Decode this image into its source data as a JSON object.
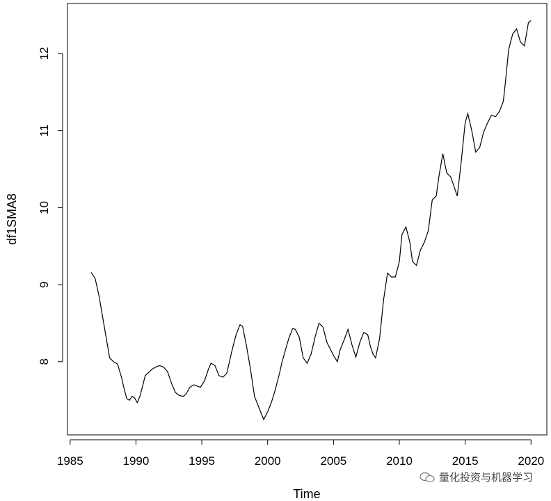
{
  "watermark": {
    "text": "量化投资与机器学习",
    "icon": "wechat-icon"
  },
  "chart_data": {
    "type": "line",
    "title": "",
    "xlabel": "Time",
    "ylabel": "df1SMA8",
    "xlim": [
      1984.8,
      2021.2
    ],
    "ylim": [
      7.05,
      12.65
    ],
    "xticks": [
      1985,
      1990,
      1995,
      2000,
      2005,
      2010,
      2015,
      2020
    ],
    "yticks": [
      8,
      9,
      10,
      11,
      12
    ],
    "grid": false,
    "color": "#000000",
    "series": [
      {
        "x": [
          1986.6,
          1986.9,
          1987.2,
          1987.5,
          1987.8,
          1988.0,
          1988.3,
          1988.6,
          1988.9,
          1989.1,
          1989.3,
          1989.5,
          1989.7,
          1989.9,
          1990.1,
          1990.3,
          1990.5,
          1990.7,
          1990.9,
          1991.2,
          1991.5,
          1991.8,
          1992.1,
          1992.4,
          1992.7,
          1993.0,
          1993.3,
          1993.6,
          1993.8,
          1994.1,
          1994.4,
          1994.7,
          1994.9,
          1995.2,
          1995.5,
          1995.7,
          1996.0,
          1996.3,
          1996.6,
          1996.9,
          1997.1,
          1997.3,
          1997.6,
          1997.9,
          1998.1,
          1998.4,
          1998.7,
          1999.0,
          1999.3,
          1999.7,
          2000.0,
          2000.3,
          2000.6,
          2000.9,
          2001.1,
          2001.3,
          2001.6,
          2001.9,
          2002.1,
          2002.4,
          2002.7,
          2003.0,
          2003.3,
          2003.6,
          2003.9,
          2004.2,
          2004.5,
          2004.8,
          2005.0,
          2005.3,
          2005.5,
          2005.8,
          2006.1,
          2006.4,
          2006.7,
          2007.0,
          2007.3,
          2007.6,
          2007.8,
          2008.0,
          2008.2,
          2008.5,
          2008.8,
          2009.1,
          2009.4,
          2009.7,
          2010.0,
          2010.2,
          2010.5,
          2010.8,
          2011.0,
          2011.3,
          2011.6,
          2011.9,
          2012.2,
          2012.5,
          2012.8,
          2013.0,
          2013.3,
          2013.6,
          2013.9,
          2014.2,
          2014.4,
          2014.7,
          2015.0,
          2015.2,
          2015.5,
          2015.8,
          2016.1,
          2016.4,
          2016.7,
          2017.0,
          2017.3,
          2017.6,
          2017.9,
          2018.1,
          2018.3,
          2018.6,
          2018.9,
          2019.2,
          2019.5,
          2019.8,
          2020.0
        ],
        "y": [
          9.16,
          9.08,
          8.85,
          8.55,
          8.25,
          8.05,
          8.0,
          7.97,
          7.8,
          7.65,
          7.52,
          7.5,
          7.55,
          7.53,
          7.47,
          7.55,
          7.68,
          7.82,
          7.85,
          7.9,
          7.93,
          7.95,
          7.93,
          7.87,
          7.72,
          7.6,
          7.56,
          7.55,
          7.58,
          7.67,
          7.7,
          7.68,
          7.67,
          7.75,
          7.9,
          7.98,
          7.95,
          7.82,
          7.8,
          7.85,
          8.0,
          8.15,
          8.35,
          8.48,
          8.46,
          8.2,
          7.9,
          7.55,
          7.42,
          7.25,
          7.35,
          7.48,
          7.65,
          7.85,
          8.0,
          8.12,
          8.3,
          8.43,
          8.42,
          8.32,
          8.05,
          7.98,
          8.1,
          8.32,
          8.5,
          8.45,
          8.25,
          8.15,
          8.08,
          8.0,
          8.15,
          8.28,
          8.42,
          8.22,
          8.06,
          8.25,
          8.38,
          8.35,
          8.2,
          8.1,
          8.05,
          8.3,
          8.8,
          9.15,
          9.1,
          9.1,
          9.3,
          9.65,
          9.75,
          9.55,
          9.3,
          9.25,
          9.45,
          9.55,
          9.7,
          10.1,
          10.15,
          10.4,
          10.7,
          10.45,
          10.4,
          10.25,
          10.15,
          10.6,
          11.1,
          11.22,
          11.0,
          10.72,
          10.78,
          10.98,
          11.1,
          11.2,
          11.18,
          11.25,
          11.38,
          11.7,
          12.05,
          12.25,
          12.32,
          12.15,
          12.1,
          12.4,
          12.43
        ]
      }
    ]
  }
}
